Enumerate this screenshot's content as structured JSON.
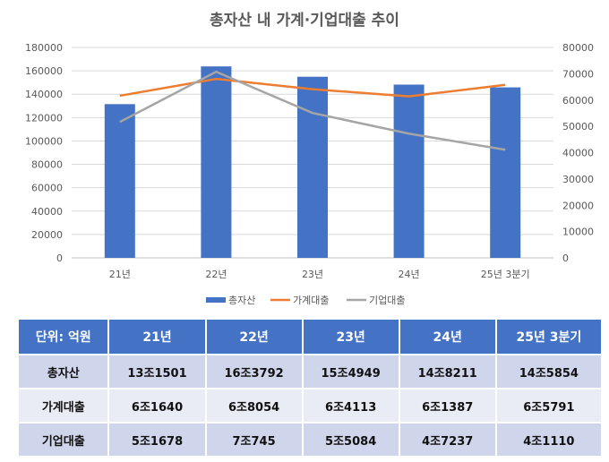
{
  "chart_data": {
    "type": "bar+line",
    "title": "총자산 내 가계·기업대출 추이",
    "categories": [
      "21년",
      "22년",
      "23년",
      "24년",
      "25년 3분기"
    ],
    "series": [
      {
        "name": "총자산",
        "type": "bar",
        "axis": "left",
        "color": "#4472c4",
        "values": [
          131501,
          163792,
          154949,
          148211,
          145854
        ]
      },
      {
        "name": "가계대출",
        "type": "line",
        "axis": "right",
        "color": "#ed7d31",
        "values": [
          61640,
          68054,
          64113,
          61387,
          65791
        ]
      },
      {
        "name": "기업대출",
        "type": "line",
        "axis": "right",
        "color": "#a5a5a5",
        "values": [
          51678,
          70745,
          55084,
          47237,
          41110
        ]
      }
    ],
    "left_axis": {
      "range": [
        0,
        180000
      ],
      "ticks": [
        "0",
        "20000",
        "40000",
        "60000",
        "80000",
        "100000",
        "120000",
        "140000",
        "160000",
        "180000"
      ]
    },
    "right_axis": {
      "range": [
        0,
        80000
      ],
      "ticks": [
        "0",
        "10000",
        "20000",
        "30000",
        "40000",
        "50000",
        "60000",
        "70000",
        "80000"
      ]
    },
    "grid": true,
    "legend": "bottom"
  },
  "table": {
    "header": [
      "단위: 억원",
      "21년",
      "22년",
      "23년",
      "24년",
      "25년 3분기"
    ],
    "rows": [
      [
        "총자산",
        "13조1501",
        "16조3792",
        "15조4949",
        "14조8211",
        "14조5854"
      ],
      [
        "가계대출",
        "6조1640",
        "6조8054",
        "6조4113",
        "6조1387",
        "6조5791"
      ],
      [
        "기업대출",
        "5조1678",
        "7조745",
        "5조5084",
        "4조7237",
        "4조1110"
      ]
    ]
  }
}
